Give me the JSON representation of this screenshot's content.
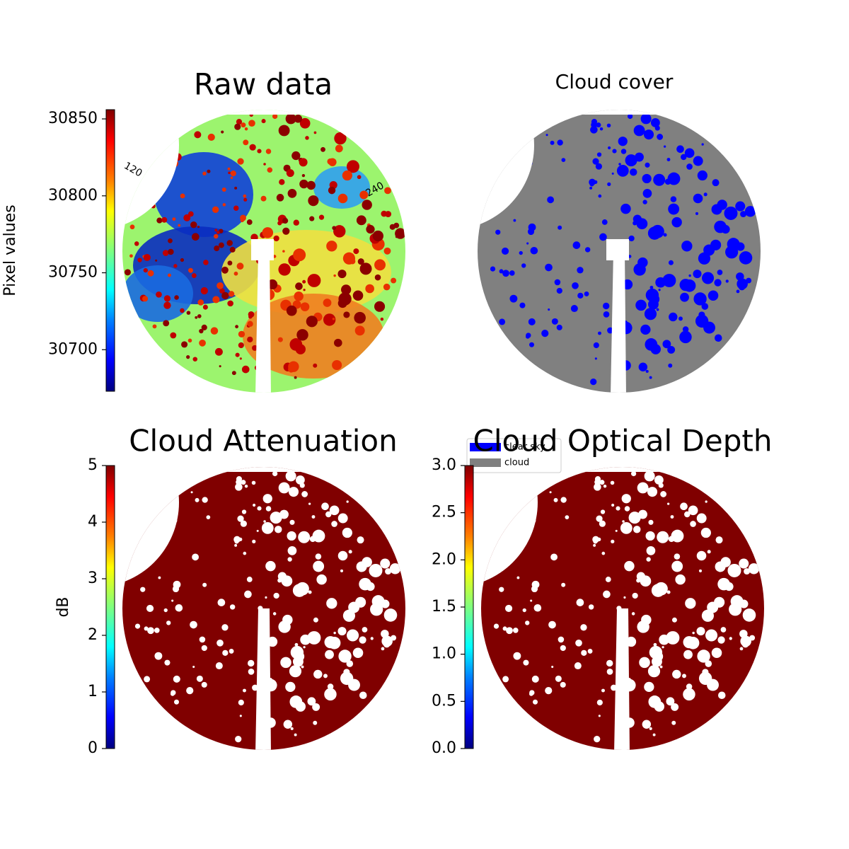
{
  "chart_data": [
    {
      "type": "image",
      "title": "Raw data",
      "ylabel": "Pixel values",
      "ylim": [
        30673,
        30856
      ],
      "yticks": [
        30700,
        30750,
        30800,
        30850
      ],
      "colormap": "jet",
      "annotations": [
        "120",
        "240"
      ]
    },
    {
      "type": "image",
      "title": "Cloud cover",
      "series": [
        {
          "name": "clear sky",
          "color": "#0000ff"
        },
        {
          "name": "cloud",
          "color": "#808080"
        }
      ]
    },
    {
      "type": "image",
      "title": "Cloud Attenuation",
      "ylabel": "dB",
      "ylim": [
        0,
        5
      ],
      "yticks": [
        0,
        1,
        2,
        3,
        4,
        5
      ],
      "colormap": "jet"
    },
    {
      "type": "image",
      "title": "Cloud Optical Depth",
      "ylim": [
        0,
        3
      ],
      "yticks": [
        {
          "value": 0,
          "label": "0.0"
        },
        0.5,
        {
          "value": 1,
          "label": "1.0"
        },
        1.5,
        {
          "value": 2,
          "label": "2.0"
        },
        2.5,
        {
          "value": 3,
          "label": "3.0"
        }
      ],
      "colormap": "jet"
    }
  ]
}
